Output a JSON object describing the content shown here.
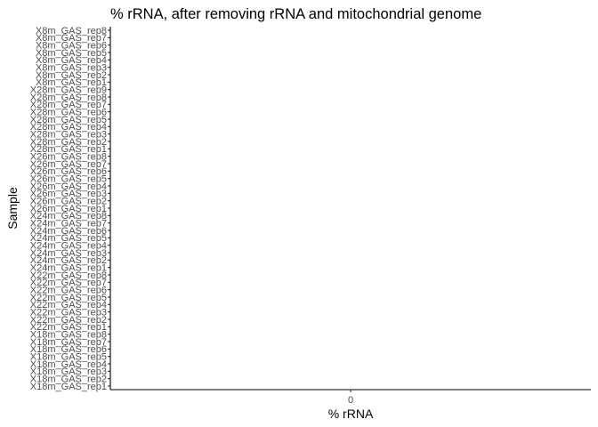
{
  "chart_data": {
    "type": "bar",
    "orientation": "horizontal",
    "title": "% rRNA, after removing rRNA and mitochondrial genome",
    "xlabel": "% rRNA",
    "ylabel": "Sample",
    "x_ticks": [
      "0"
    ],
    "xlim": [
      -0.05,
      0.05
    ],
    "grid": false,
    "categories": [
      "X18m_GAS_rep1",
      "X18m_GAS_rep2",
      "X18m_GAS_rep3",
      "X18m_GAS_rep4",
      "X18m_GAS_rep5",
      "X18m_GAS_rep6",
      "X18m_GAS_rep7",
      "X18m_GAS_rep8",
      "X22m_GAS_rep1",
      "X22m_GAS_rep2",
      "X22m_GAS_rep3",
      "X22m_GAS_rep4",
      "X22m_GAS_rep5",
      "X22m_GAS_rep6",
      "X22m_GAS_rep7",
      "X22m_GAS_rep8",
      "X24m_GAS_rep1",
      "X24m_GAS_rep2",
      "X24m_GAS_rep3",
      "X24m_GAS_rep4",
      "X24m_GAS_rep5",
      "X24m_GAS_rep6",
      "X24m_GAS_rep7",
      "X24m_GAS_rep8",
      "X26m_GAS_rep1",
      "X26m_GAS_rep2",
      "X26m_GAS_rep3",
      "X26m_GAS_rep4",
      "X26m_GAS_rep5",
      "X26m_GAS_rep6",
      "X26m_GAS_rep7",
      "X26m_GAS_rep8",
      "X28m_GAS_rep1",
      "X28m_GAS_rep2",
      "X28m_GAS_rep3",
      "X28m_GAS_rep4",
      "X28m_GAS_rep5",
      "X28m_GAS_rep6",
      "X28m_GAS_rep7",
      "X28m_GAS_rep8",
      "X28m_GAS_rep9",
      "X8m_GAS_rep1",
      "X8m_GAS_rep2",
      "X8m_GAS_rep3",
      "X8m_GAS_rep4",
      "X8m_GAS_rep5",
      "X8m_GAS_rep6",
      "X8m_GAS_rep7",
      "X8m_GAS_rep8"
    ],
    "values": [
      0,
      0,
      0,
      0,
      0,
      0,
      0,
      0,
      0,
      0,
      0,
      0,
      0,
      0,
      0,
      0,
      0,
      0,
      0,
      0,
      0,
      0,
      0,
      0,
      0,
      0,
      0,
      0,
      0,
      0,
      0,
      0,
      0,
      0,
      0,
      0,
      0,
      0,
      0,
      0,
      0,
      0,
      0,
      0,
      0,
      0,
      0,
      0,
      0
    ],
    "colors": {
      "axis": "#000000",
      "tick_label": "#4d4d4d",
      "background": "#ffffff"
    }
  }
}
